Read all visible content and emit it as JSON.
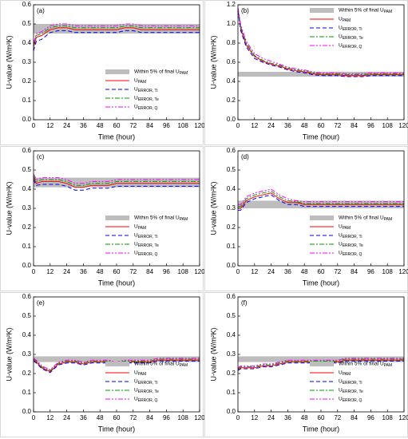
{
  "chart_data": [
    {
      "type": "line",
      "title": "(a)",
      "ylabel": "U-value (W/m²K)",
      "xlabel": "Time (hour)",
      "legend": "lower right",
      "band": [
        0.45,
        0.5
      ],
      "band_color": "#bdbdbd",
      "band_label": "Within 5% of final UPAM",
      "xlim": [
        0,
        120
      ],
      "xticks": [
        0,
        12,
        24,
        36,
        48,
        60,
        72,
        84,
        96,
        108,
        120
      ],
      "ylim": [
        0,
        0.6
      ],
      "yticks": [
        {
          "value": 0,
          "label": "0.0"
        },
        0.1,
        0.2,
        0.3,
        0.4,
        0.5,
        0.6
      ],
      "x": [
        0,
        2,
        6,
        12,
        18,
        24,
        30,
        36,
        42,
        48,
        54,
        60,
        66,
        72,
        78,
        84,
        90,
        96,
        102,
        108,
        114,
        120
      ],
      "series": [
        {
          "name": "UPAM",
          "color": "#ff0000",
          "dash": "none",
          "values": [
            0.38,
            0.43,
            0.44,
            0.47,
            0.48,
            0.48,
            0.47,
            0.47,
            0.47,
            0.47,
            0.47,
            0.47,
            0.48,
            0.48,
            0.47,
            0.47,
            0.47,
            0.47,
            0.47,
            0.47,
            0.47,
            0.47
          ]
        },
        {
          "name": "UERROR, Ti",
          "color": "#0000ff",
          "dash": "5,3",
          "values": [
            0.36,
            0.41,
            0.42,
            0.455,
            0.465,
            0.465,
            0.455,
            0.455,
            0.455,
            0.455,
            0.455,
            0.455,
            0.465,
            0.465,
            0.455,
            0.455,
            0.455,
            0.455,
            0.455,
            0.455,
            0.455,
            0.455
          ]
        },
        {
          "name": "UERROR, Te",
          "color": "#009900",
          "dash": "6,2,2,2",
          "values": [
            0.39,
            0.44,
            0.45,
            0.48,
            0.49,
            0.49,
            0.48,
            0.48,
            0.48,
            0.48,
            0.48,
            0.48,
            0.49,
            0.49,
            0.48,
            0.48,
            0.48,
            0.48,
            0.48,
            0.48,
            0.48,
            0.48
          ]
        },
        {
          "name": "UERROR, Q",
          "color": "#ff00ff",
          "dash": "6,2,2,2,2,2",
          "values": [
            0.4,
            0.45,
            0.46,
            0.49,
            0.5,
            0.5,
            0.49,
            0.49,
            0.49,
            0.49,
            0.49,
            0.49,
            0.5,
            0.5,
            0.49,
            0.49,
            0.49,
            0.49,
            0.49,
            0.49,
            0.49,
            0.49
          ]
        }
      ]
    },
    {
      "type": "line",
      "title": "(b)",
      "ylabel": "U-value (W/m²K)",
      "xlabel": "Time (hour)",
      "legend": "upper right",
      "band": [
        0.45,
        0.5
      ],
      "band_color": "#bdbdbd",
      "band_label": "Within 5% of final UPAM",
      "xlim": [
        0,
        120
      ],
      "xticks": [
        0,
        12,
        24,
        36,
        48,
        60,
        72,
        84,
        96,
        108,
        120
      ],
      "ylim": [
        0,
        1.2
      ],
      "yticks": [
        {
          "value": 0,
          "label": "0.0"
        },
        0.2,
        0.4,
        0.6,
        0.8,
        {
          "value": 1,
          "label": "1.0"
        },
        1.2
      ],
      "x": [
        0,
        2,
        6,
        12,
        18,
        24,
        30,
        36,
        42,
        48,
        54,
        60,
        66,
        72,
        78,
        84,
        90,
        96,
        102,
        108,
        114,
        120
      ],
      "series": [
        {
          "name": "UPAM",
          "color": "#ff0000",
          "dash": "none",
          "values": [
            1.15,
            0.95,
            0.78,
            0.66,
            0.61,
            0.58,
            0.56,
            0.53,
            0.51,
            0.5,
            0.48,
            0.47,
            0.47,
            0.47,
            0.46,
            0.46,
            0.46,
            0.47,
            0.47,
            0.47,
            0.47,
            0.47
          ]
        },
        {
          "name": "UERROR, Ti",
          "color": "#0000ff",
          "dash": "5,3",
          "values": [
            1.14,
            0.93,
            0.76,
            0.64,
            0.6,
            0.57,
            0.55,
            0.52,
            0.5,
            0.49,
            0.47,
            0.46,
            0.46,
            0.46,
            0.45,
            0.45,
            0.45,
            0.46,
            0.46,
            0.46,
            0.46,
            0.46
          ]
        },
        {
          "name": "UERROR, Te",
          "color": "#009900",
          "dash": "6,2,2,2",
          "values": [
            1.16,
            0.97,
            0.8,
            0.67,
            0.62,
            0.59,
            0.57,
            0.54,
            0.52,
            0.51,
            0.49,
            0.48,
            0.48,
            0.48,
            0.47,
            0.47,
            0.47,
            0.48,
            0.48,
            0.48,
            0.48,
            0.48
          ]
        },
        {
          "name": "UERROR, Q",
          "color": "#ff00ff",
          "dash": "6,2,2,2,2,2",
          "values": [
            1.17,
            0.99,
            0.82,
            0.69,
            0.64,
            0.61,
            0.58,
            0.55,
            0.53,
            0.52,
            0.5,
            0.49,
            0.49,
            0.49,
            0.48,
            0.48,
            0.48,
            0.49,
            0.49,
            0.49,
            0.49,
            0.49
          ]
        }
      ]
    },
    {
      "type": "line",
      "title": "(c)",
      "ylabel": "U-value (W/m²K)",
      "xlabel": "Time (hour)",
      "legend": "lower right",
      "band": [
        0.41,
        0.46
      ],
      "band_color": "#bdbdbd",
      "band_label": "Within 5% of final UPAM",
      "xlim": [
        0,
        120
      ],
      "xticks": [
        0,
        12,
        24,
        36,
        48,
        60,
        72,
        84,
        96,
        108,
        120
      ],
      "ylim": [
        0,
        0.6
      ],
      "yticks": [
        {
          "value": 0,
          "label": "0.0"
        },
        0.1,
        0.2,
        0.3,
        0.4,
        0.5,
        0.6
      ],
      "x": [
        0,
        2,
        6,
        12,
        18,
        24,
        30,
        36,
        42,
        48,
        54,
        60,
        66,
        72,
        78,
        84,
        90,
        96,
        102,
        108,
        114,
        120
      ],
      "series": [
        {
          "name": "UPAM",
          "color": "#ff0000",
          "dash": "none",
          "values": [
            0.46,
            0.43,
            0.44,
            0.44,
            0.44,
            0.43,
            0.41,
            0.41,
            0.42,
            0.42,
            0.42,
            0.43,
            0.43,
            0.43,
            0.43,
            0.43,
            0.43,
            0.43,
            0.43,
            0.43,
            0.43,
            0.43
          ]
        },
        {
          "name": "UERROR, Ti",
          "color": "#0000ff",
          "dash": "5,3",
          "values": [
            0.45,
            0.42,
            0.425,
            0.425,
            0.425,
            0.415,
            0.395,
            0.395,
            0.405,
            0.405,
            0.405,
            0.415,
            0.415,
            0.415,
            0.415,
            0.415,
            0.415,
            0.415,
            0.415,
            0.415,
            0.415,
            0.415
          ]
        },
        {
          "name": "UERROR, Te",
          "color": "#009900",
          "dash": "6,2,2,2",
          "values": [
            0.47,
            0.44,
            0.45,
            0.45,
            0.45,
            0.44,
            0.42,
            0.42,
            0.43,
            0.43,
            0.43,
            0.44,
            0.44,
            0.44,
            0.44,
            0.44,
            0.44,
            0.44,
            0.44,
            0.44,
            0.44,
            0.44
          ]
        },
        {
          "name": "UERROR, Q",
          "color": "#ff00ff",
          "dash": "6,2,2,2,2,2",
          "values": [
            0.48,
            0.45,
            0.46,
            0.46,
            0.46,
            0.45,
            0.43,
            0.43,
            0.44,
            0.44,
            0.44,
            0.45,
            0.45,
            0.45,
            0.45,
            0.45,
            0.45,
            0.45,
            0.45,
            0.45,
            0.45,
            0.45
          ]
        }
      ]
    },
    {
      "type": "line",
      "title": "(d)",
      "ylabel": "U-value (W/m²K)",
      "xlabel": "Time (hour)",
      "legend": "lower right",
      "band": [
        0.3,
        0.34
      ],
      "band_color": "#bdbdbd",
      "band_label": "Within 5% of final UPAM",
      "xlim": [
        0,
        120
      ],
      "xticks": [
        0,
        12,
        24,
        36,
        48,
        60,
        72,
        84,
        96,
        108,
        120
      ],
      "ylim": [
        0,
        0.6
      ],
      "yticks": [
        {
          "value": 0,
          "label": "0.0"
        },
        0.1,
        0.2,
        0.3,
        0.4,
        0.5,
        0.6
      ],
      "x": [
        0,
        2,
        6,
        12,
        18,
        24,
        30,
        36,
        42,
        48,
        54,
        60,
        66,
        72,
        78,
        84,
        90,
        96,
        102,
        108,
        114,
        120
      ],
      "series": [
        {
          "name": "UPAM",
          "color": "#ff0000",
          "dash": "none",
          "values": [
            0.3,
            0.3,
            0.34,
            0.36,
            0.37,
            0.38,
            0.35,
            0.33,
            0.33,
            0.32,
            0.32,
            0.32,
            0.32,
            0.32,
            0.32,
            0.32,
            0.32,
            0.32,
            0.32,
            0.32,
            0.32,
            0.32
          ]
        },
        {
          "name": "UERROR, Ti",
          "color": "#0000ff",
          "dash": "5,3",
          "values": [
            0.29,
            0.29,
            0.33,
            0.35,
            0.36,
            0.37,
            0.34,
            0.32,
            0.32,
            0.31,
            0.31,
            0.31,
            0.31,
            0.31,
            0.31,
            0.31,
            0.31,
            0.31,
            0.31,
            0.31,
            0.31,
            0.31
          ]
        },
        {
          "name": "UERROR, Te",
          "color": "#009900",
          "dash": "6,2,2,2",
          "values": [
            0.31,
            0.31,
            0.35,
            0.37,
            0.38,
            0.39,
            0.36,
            0.34,
            0.335,
            0.325,
            0.325,
            0.325,
            0.325,
            0.325,
            0.325,
            0.325,
            0.325,
            0.325,
            0.325,
            0.325,
            0.325,
            0.325
          ]
        },
        {
          "name": "UERROR, Q",
          "color": "#ff00ff",
          "dash": "6,2,2,2,2,2",
          "values": [
            0.32,
            0.32,
            0.36,
            0.38,
            0.39,
            0.4,
            0.37,
            0.35,
            0.34,
            0.335,
            0.335,
            0.335,
            0.335,
            0.335,
            0.335,
            0.335,
            0.335,
            0.335,
            0.335,
            0.335,
            0.335,
            0.335
          ]
        }
      ]
    },
    {
      "type": "line",
      "title": "(e)",
      "ylabel": "U-value (W/m²K)",
      "xlabel": "Time (hour)",
      "legend": "lower right",
      "band": [
        0.26,
        0.29
      ],
      "band_color": "#bdbdbd",
      "band_label": "Within 5% of final UPAM",
      "xlim": [
        0,
        120
      ],
      "xticks": [
        0,
        12,
        24,
        36,
        48,
        60,
        72,
        84,
        96,
        108,
        120
      ],
      "ylim": [
        0,
        0.6
      ],
      "yticks": [
        {
          "value": 0,
          "label": "0.0"
        },
        0.1,
        0.2,
        0.3,
        0.4,
        0.5,
        0.6
      ],
      "x": [
        0,
        2,
        6,
        12,
        18,
        24,
        30,
        36,
        42,
        48,
        54,
        60,
        66,
        72,
        78,
        84,
        90,
        96,
        102,
        108,
        114,
        120
      ],
      "series": [
        {
          "name": "UPAM",
          "color": "#ff0000",
          "dash": "none",
          "values": [
            0.27,
            0.26,
            0.23,
            0.21,
            0.25,
            0.26,
            0.26,
            0.25,
            0.26,
            0.26,
            0.26,
            0.25,
            0.26,
            0.26,
            0.26,
            0.26,
            0.27,
            0.27,
            0.27,
            0.27,
            0.27,
            0.27
          ]
        },
        {
          "name": "UERROR, Ti",
          "color": "#0000ff",
          "dash": "5,3",
          "values": [
            0.265,
            0.255,
            0.225,
            0.205,
            0.245,
            0.255,
            0.255,
            0.245,
            0.255,
            0.255,
            0.255,
            0.245,
            0.255,
            0.255,
            0.255,
            0.255,
            0.265,
            0.265,
            0.265,
            0.265,
            0.265,
            0.265
          ]
        },
        {
          "name": "UERROR, Te",
          "color": "#009900",
          "dash": "6,2,2,2",
          "values": [
            0.275,
            0.265,
            0.235,
            0.215,
            0.255,
            0.265,
            0.265,
            0.255,
            0.265,
            0.265,
            0.265,
            0.255,
            0.265,
            0.265,
            0.265,
            0.265,
            0.275,
            0.275,
            0.275,
            0.275,
            0.275,
            0.275
          ]
        },
        {
          "name": "UERROR, Q",
          "color": "#ff00ff",
          "dash": "6,2,2,2,2,2",
          "values": [
            0.28,
            0.27,
            0.24,
            0.22,
            0.26,
            0.27,
            0.27,
            0.26,
            0.27,
            0.27,
            0.27,
            0.26,
            0.27,
            0.27,
            0.27,
            0.27,
            0.28,
            0.28,
            0.28,
            0.28,
            0.28,
            0.28
          ]
        }
      ]
    },
    {
      "type": "line",
      "title": "(f)",
      "ylabel": "U-value (W/m²K)",
      "xlabel": "Time (hour)",
      "legend": "lower right",
      "band": [
        0.26,
        0.29
      ],
      "band_color": "#bdbdbd",
      "band_label": "Within 5% of final UPAM",
      "xlim": [
        0,
        120
      ],
      "xticks": [
        0,
        12,
        24,
        36,
        48,
        60,
        72,
        84,
        96,
        108,
        120
      ],
      "ylim": [
        0,
        0.6
      ],
      "yticks": [
        {
          "value": 0,
          "label": "0.0"
        },
        0.1,
        0.2,
        0.3,
        0.4,
        0.5,
        0.6
      ],
      "x": [
        0,
        2,
        6,
        12,
        18,
        24,
        30,
        36,
        42,
        48,
        54,
        60,
        66,
        72,
        78,
        84,
        90,
        96,
        102,
        108,
        114,
        120
      ],
      "series": [
        {
          "name": "UPAM",
          "color": "#ff0000",
          "dash": "none",
          "values": [
            0.22,
            0.23,
            0.23,
            0.23,
            0.24,
            0.24,
            0.25,
            0.26,
            0.26,
            0.26,
            0.26,
            0.26,
            0.26,
            0.26,
            0.27,
            0.27,
            0.27,
            0.27,
            0.27,
            0.27,
            0.27,
            0.27
          ]
        },
        {
          "name": "UERROR, Ti",
          "color": "#0000ff",
          "dash": "5,3",
          "values": [
            0.215,
            0.225,
            0.225,
            0.225,
            0.235,
            0.235,
            0.245,
            0.255,
            0.255,
            0.255,
            0.255,
            0.255,
            0.255,
            0.255,
            0.265,
            0.265,
            0.265,
            0.265,
            0.265,
            0.265,
            0.265,
            0.265
          ]
        },
        {
          "name": "UERROR, Te",
          "color": "#009900",
          "dash": "6,2,2,2",
          "values": [
            0.225,
            0.235,
            0.235,
            0.235,
            0.245,
            0.245,
            0.255,
            0.265,
            0.265,
            0.265,
            0.265,
            0.265,
            0.265,
            0.265,
            0.275,
            0.275,
            0.275,
            0.275,
            0.275,
            0.275,
            0.275,
            0.275
          ]
        },
        {
          "name": "UERROR, Q",
          "color": "#ff00ff",
          "dash": "6,2,2,2,2,2",
          "values": [
            0.23,
            0.24,
            0.24,
            0.24,
            0.25,
            0.25,
            0.26,
            0.27,
            0.27,
            0.27,
            0.27,
            0.27,
            0.27,
            0.27,
            0.28,
            0.28,
            0.28,
            0.28,
            0.28,
            0.28,
            0.28,
            0.28
          ]
        }
      ]
    }
  ]
}
